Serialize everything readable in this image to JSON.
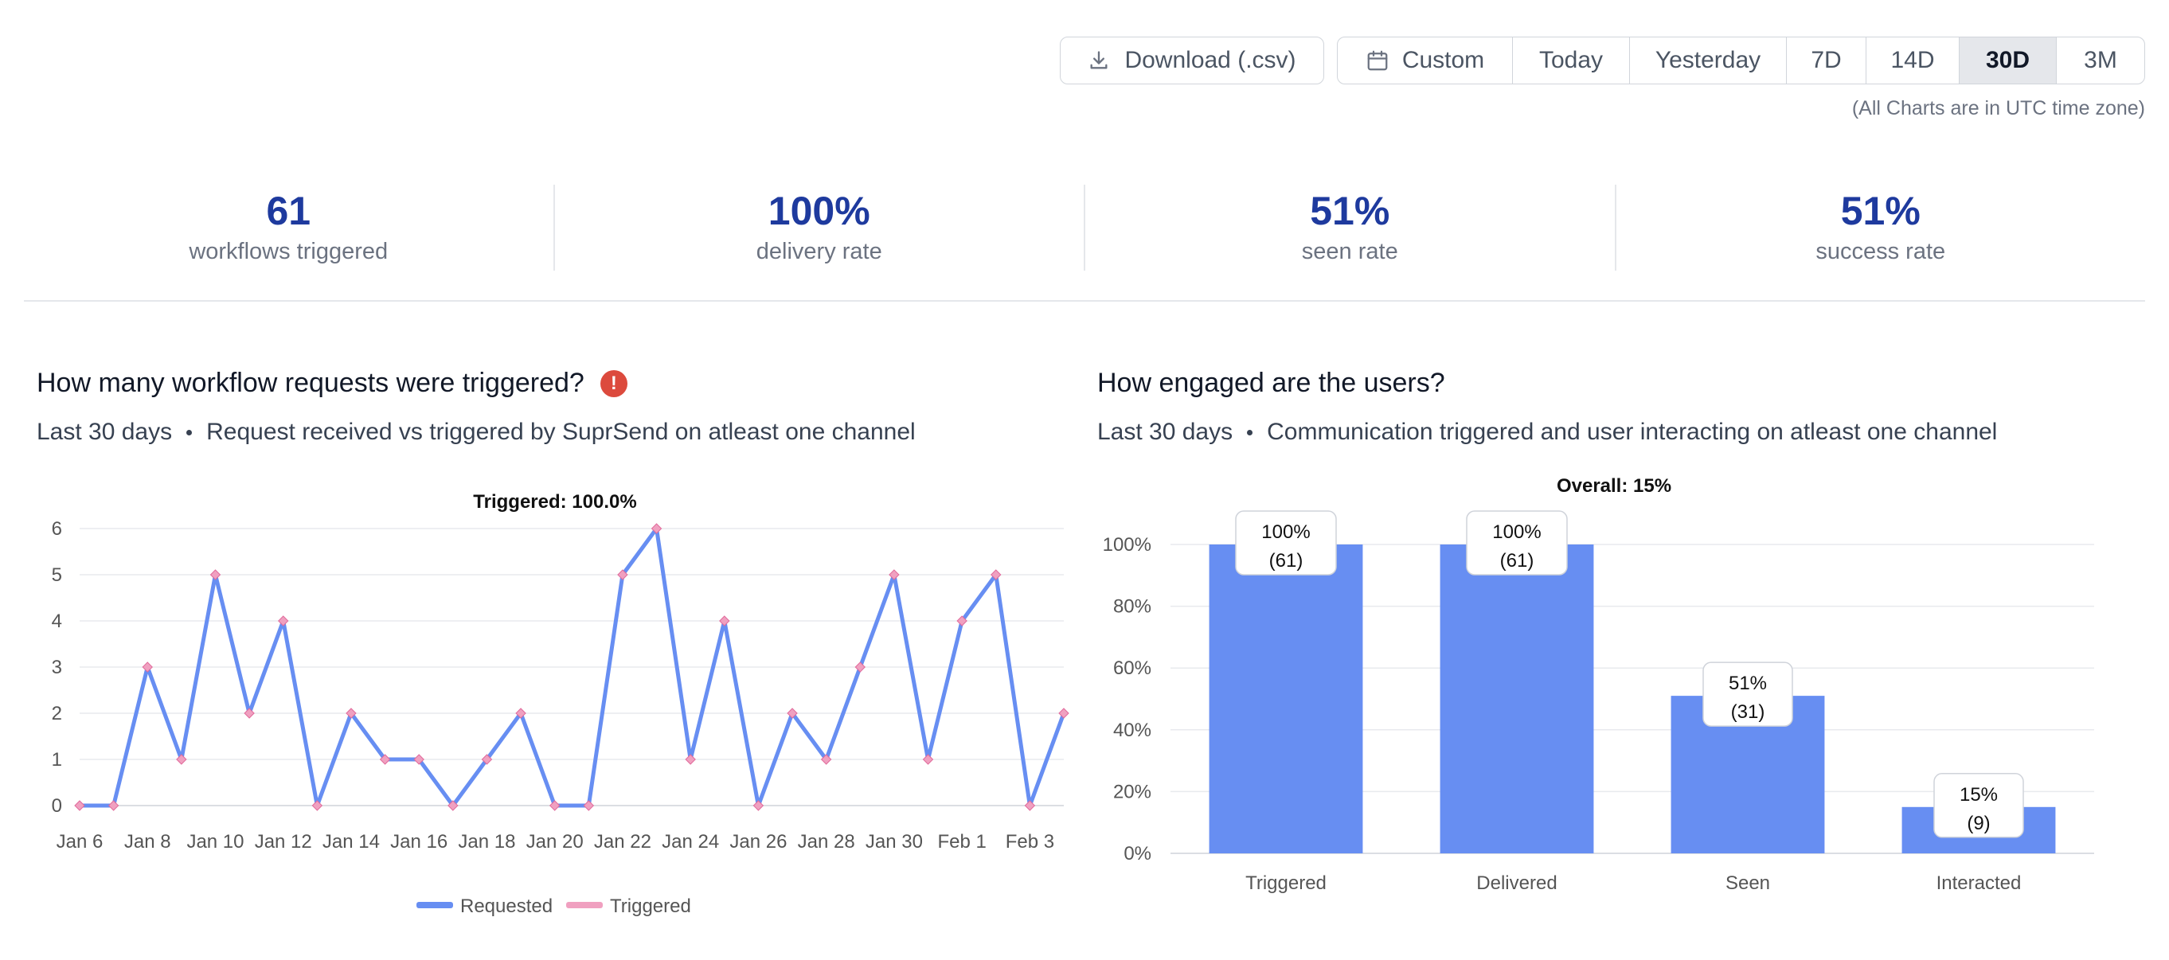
{
  "toolbar": {
    "download_label": "Download (.csv)",
    "download_icon": "download-icon",
    "ranges": [
      {
        "label": "Custom",
        "icon": "calendar-icon",
        "active": false
      },
      {
        "label": "Today",
        "active": false
      },
      {
        "label": "Yesterday",
        "active": false
      },
      {
        "label": "7D",
        "active": false
      },
      {
        "label": "14D",
        "active": false
      },
      {
        "label": "30D",
        "active": true
      },
      {
        "label": "3M",
        "active": false
      }
    ],
    "utc_note": "(All Charts are in UTC time zone)"
  },
  "kpis": [
    {
      "value": "61",
      "label": "workflows triggered"
    },
    {
      "value": "100%",
      "label": "delivery rate"
    },
    {
      "value": "51%",
      "label": "seen rate"
    },
    {
      "value": "51%",
      "label": "success rate"
    }
  ],
  "left_panel": {
    "title": "How many workflow requests were triggered?",
    "period": "Last 30 days",
    "description": "Request received vs triggered by SuprSend on atleast one channel"
  },
  "right_panel": {
    "title": "How engaged are the users?",
    "period": "Last 30 days",
    "description": "Communication triggered and user interacting on atleast one channel"
  },
  "colors": {
    "accent": "#1e3a9e",
    "bar": "#678ef2",
    "line_requested": "#678ef2",
    "line_triggered": "#f0a0c0",
    "alert": "#dc4a3d"
  },
  "chart_data": [
    {
      "type": "line",
      "title": "Triggered: 100.0%",
      "x": [
        "Jan 6",
        "Jan 7",
        "Jan 8",
        "Jan 9",
        "Jan 10",
        "Jan 11",
        "Jan 12",
        "Jan 13",
        "Jan 14",
        "Jan 15",
        "Jan 16",
        "Jan 17",
        "Jan 18",
        "Jan 19",
        "Jan 20",
        "Jan 21",
        "Jan 22",
        "Jan 23",
        "Jan 24",
        "Jan 25",
        "Jan 26",
        "Jan 27",
        "Jan 28",
        "Jan 29",
        "Jan 30",
        "Jan 31",
        "Feb 1",
        "Feb 2",
        "Feb 3",
        "Feb 4"
      ],
      "x_tick_labels": [
        "Jan 6",
        "Jan 8",
        "Jan 10",
        "Jan 12",
        "Jan 14",
        "Jan 16",
        "Jan 18",
        "Jan 20",
        "Jan 22",
        "Jan 24",
        "Jan 26",
        "Jan 28",
        "Jan 30",
        "Feb 1",
        "Feb 3"
      ],
      "y_ticks": [
        0,
        1,
        2,
        3,
        4,
        5,
        6
      ],
      "ylim": [
        0,
        6
      ],
      "series": [
        {
          "name": "Requested",
          "values": [
            0,
            0,
            3,
            1,
            5,
            2,
            4,
            0,
            2,
            1,
            1,
            0,
            1,
            2,
            0,
            0,
            5,
            6,
            1,
            4,
            0,
            2,
            1,
            3,
            5,
            1,
            4,
            5,
            0,
            2
          ]
        },
        {
          "name": "Triggered",
          "values": [
            0,
            0,
            3,
            1,
            5,
            2,
            4,
            0,
            2,
            1,
            1,
            0,
            1,
            2,
            0,
            0,
            5,
            6,
            1,
            4,
            0,
            2,
            1,
            3,
            5,
            1,
            4,
            5,
            0,
            2
          ]
        }
      ],
      "legend": "bottom-center",
      "grid": true
    },
    {
      "type": "bar",
      "title": "Overall: 15%",
      "categories": [
        "Triggered",
        "Delivered",
        "Seen",
        "Interacted"
      ],
      "values": [
        100,
        100,
        51,
        15
      ],
      "counts": [
        61,
        61,
        31,
        9
      ],
      "value_labels": [
        "100%",
        "100%",
        "51%",
        "15%"
      ],
      "count_labels": [
        "(61)",
        "(61)",
        "(31)",
        "(9)"
      ],
      "y_tick_labels": [
        "0%",
        "20%",
        "40%",
        "60%",
        "80%",
        "100%"
      ],
      "ylim": [
        0,
        100
      ],
      "grid": true
    }
  ]
}
